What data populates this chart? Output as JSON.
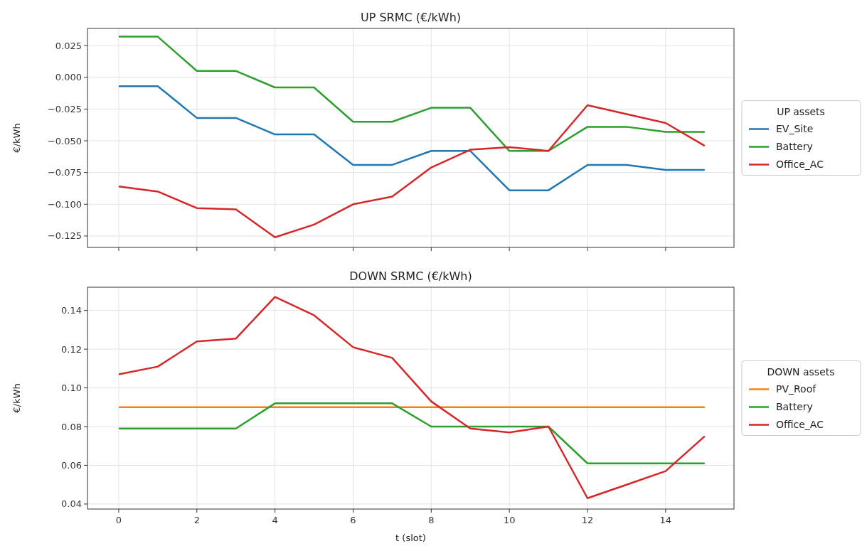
{
  "chart_data": [
    {
      "type": "line",
      "title": "UP SRMC (€/kWh)",
      "ylabel": "€/kWh",
      "legend_title": "UP assets",
      "legend": "right",
      "grid": true,
      "tick_labels": "y",
      "x": [
        0,
        1,
        2,
        3,
        4,
        5,
        6,
        7,
        8,
        9,
        10,
        11,
        12,
        13,
        14,
        15
      ],
      "xlim": [
        -0.8,
        15.75
      ],
      "xticks": [
        0,
        2,
        4,
        6,
        8,
        10,
        12,
        14
      ],
      "ylim": [
        -0.134,
        0.0385
      ],
      "yticks": [
        {
          "value": 0.025,
          "label": "0.025"
        },
        {
          "value": 0,
          "label": "0.000"
        },
        {
          "value": -0.025,
          "label": "−0.025"
        },
        {
          "value": -0.05,
          "label": "−0.050"
        },
        {
          "value": -0.075,
          "label": "−0.075"
        },
        {
          "value": -0.1,
          "label": "−0.100"
        },
        {
          "value": -0.125,
          "label": "−0.125"
        }
      ],
      "series": [
        {
          "name": "EV_Site",
          "color": "#1f77b4",
          "values": [
            -0.007,
            -0.007,
            -0.032,
            -0.032,
            -0.045,
            -0.045,
            -0.069,
            -0.069,
            -0.058,
            -0.058,
            -0.089,
            -0.089,
            -0.069,
            -0.069,
            -0.073,
            -0.073
          ]
        },
        {
          "name": "Battery",
          "color": "#2ca02c",
          "values": [
            0.032,
            0.032,
            0.005,
            0.005,
            -0.008,
            -0.008,
            -0.035,
            -0.035,
            -0.024,
            -0.024,
            -0.058,
            -0.058,
            -0.039,
            -0.039,
            -0.043,
            -0.043
          ]
        },
        {
          "name": "Office_AC",
          "color": "#d62728",
          "values": [
            -0.086,
            -0.09,
            -0.103,
            -0.104,
            -0.126,
            -0.116,
            -0.1,
            -0.094,
            -0.071,
            -0.057,
            -0.055,
            -0.058,
            -0.022,
            -0.029,
            -0.036,
            -0.054
          ]
        }
      ]
    },
    {
      "type": "line",
      "title": "DOWN SRMC (€/kWh)",
      "xlabel": "t (slot)",
      "ylabel": "€/kWh",
      "legend_title": "DOWN assets",
      "legend": "right",
      "grid": true,
      "x": [
        0,
        1,
        2,
        3,
        4,
        5,
        6,
        7,
        8,
        9,
        10,
        11,
        12,
        13,
        14,
        15
      ],
      "xlim": [
        -0.8,
        15.75
      ],
      "xticks": [
        0,
        2,
        4,
        6,
        8,
        10,
        12,
        14
      ],
      "ylim": [
        0.0374,
        0.152
      ],
      "yticks": [
        {
          "value": 0.04,
          "label": "0.04"
        },
        {
          "value": 0.06,
          "label": "0.06"
        },
        {
          "value": 0.08,
          "label": "0.08"
        },
        {
          "value": 0.1,
          "label": "0.10"
        },
        {
          "value": 0.12,
          "label": "0.12"
        },
        {
          "value": 0.14,
          "label": "0.14"
        }
      ],
      "series": [
        {
          "name": "PV_Roof",
          "color": "#ff7f0e",
          "values": [
            0.09,
            0.09,
            0.09,
            0.09,
            0.09,
            0.09,
            0.09,
            0.09,
            0.09,
            0.09,
            0.09,
            0.09,
            0.09,
            0.09,
            0.09,
            0.09
          ]
        },
        {
          "name": "Battery",
          "color": "#2ca02c",
          "values": [
            0.079,
            0.079,
            0.079,
            0.079,
            0.092,
            0.092,
            0.092,
            0.092,
            0.08,
            0.08,
            0.08,
            0.08,
            0.061,
            0.061,
            0.061,
            0.061
          ]
        },
        {
          "name": "Office_AC",
          "color": "#d62728",
          "values": [
            0.107,
            0.111,
            0.124,
            0.1255,
            0.147,
            0.1375,
            0.121,
            0.1155,
            0.093,
            0.079,
            0.077,
            0.08,
            0.043,
            0.05,
            0.057,
            0.075
          ]
        }
      ]
    }
  ]
}
